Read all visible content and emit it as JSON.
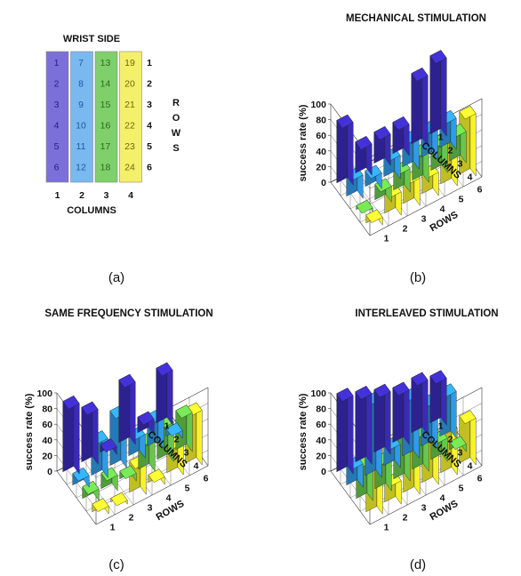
{
  "panel_labels": [
    "(a)",
    "(b)",
    "(c)",
    "(d)"
  ],
  "electrode_map": {
    "title": "WRIST SIDE",
    "rows_label": "ROWS",
    "columns_label": "COLUMNS",
    "row_ticks": [
      "1",
      "2",
      "3",
      "4",
      "5",
      "6"
    ],
    "column_ticks": [
      "1",
      "2",
      "3",
      "4"
    ],
    "columns": [
      {
        "color": "#7b6fd9",
        "numbers": [
          "1",
          "2",
          "3",
          "4",
          "5",
          "6"
        ]
      },
      {
        "color": "#7ab8f0",
        "numbers": [
          "7",
          "8",
          "9",
          "10",
          "11",
          "12"
        ]
      },
      {
        "color": "#7fcf6a",
        "numbers": [
          "13",
          "14",
          "15",
          "16",
          "17",
          "18"
        ]
      },
      {
        "color": "#f5f06a",
        "numbers": [
          "19",
          "20",
          "21",
          "22",
          "23",
          "24"
        ]
      }
    ]
  },
  "colors": {
    "col1": "#3a2ab8",
    "col2": "#2f9be8",
    "col3": "#66c74a",
    "col4": "#f7f32a"
  },
  "chart_data": [
    {
      "type": "bar3d",
      "title": "MECHANICAL STIMULATION",
      "zlabel": "success rate (%)",
      "xlabel": "COLUMNS",
      "ylabel": "ROWS",
      "zticks": [
        "0",
        "20",
        "40",
        "60",
        "80",
        "100"
      ],
      "zlim": [
        0,
        100
      ],
      "column_ticks": [
        "1",
        "2",
        "3",
        "4"
      ],
      "row_ticks": [
        "1",
        "2",
        "3",
        "4",
        "5",
        "6"
      ],
      "values": [
        [
          80,
          40,
          40,
          40,
          90,
          100
        ],
        [
          30,
          20,
          30,
          40,
          40,
          40
        ],
        [
          5,
          20,
          30,
          40,
          40,
          40
        ],
        [
          10,
          30,
          35,
          30,
          60,
          80
        ]
      ]
    },
    {
      "type": "bar3d",
      "title": "SAME FREQUENCY STIMULATION",
      "zlabel": "success rate (%)",
      "xlabel": "COLUMNS",
      "ylabel": "ROWS",
      "zticks": [
        "0",
        "20",
        "40",
        "60",
        "80",
        "100"
      ],
      "zlim": [
        0,
        100
      ],
      "column_ticks": [
        "1",
        "2",
        "3",
        "4"
      ],
      "row_ticks": [
        "1",
        "2",
        "3",
        "4",
        "5",
        "6"
      ],
      "values": [
        [
          90,
          70,
          10,
          80,
          20,
          70
        ],
        [
          15,
          50,
          70,
          30,
          40,
          10
        ],
        [
          15,
          20,
          10,
          40,
          50,
          50
        ],
        [
          10,
          5,
          40,
          10,
          40,
          70
        ]
      ]
    },
    {
      "type": "bar3d",
      "title": "INTERLEAVED STIMULATION",
      "zlabel": "success rate (%)",
      "xlabel": "COLUMNS",
      "ylabel": "ROWS",
      "zticks": [
        "0",
        "20",
        "40",
        "60",
        "80",
        "100"
      ],
      "zlim": [
        0,
        100
      ],
      "column_ticks": [
        "1",
        "2",
        "3",
        "4"
      ],
      "row_ticks": [
        "1",
        "2",
        "3",
        "4",
        "5",
        "6"
      ],
      "values": [
        [
          100,
          90,
          80,
          70,
          70,
          60
        ],
        [
          30,
          100,
          30,
          80,
          60,
          60
        ],
        [
          50,
          40,
          80,
          50,
          30,
          10
        ],
        [
          100,
          30,
          60,
          70,
          60,
          60
        ]
      ]
    }
  ]
}
